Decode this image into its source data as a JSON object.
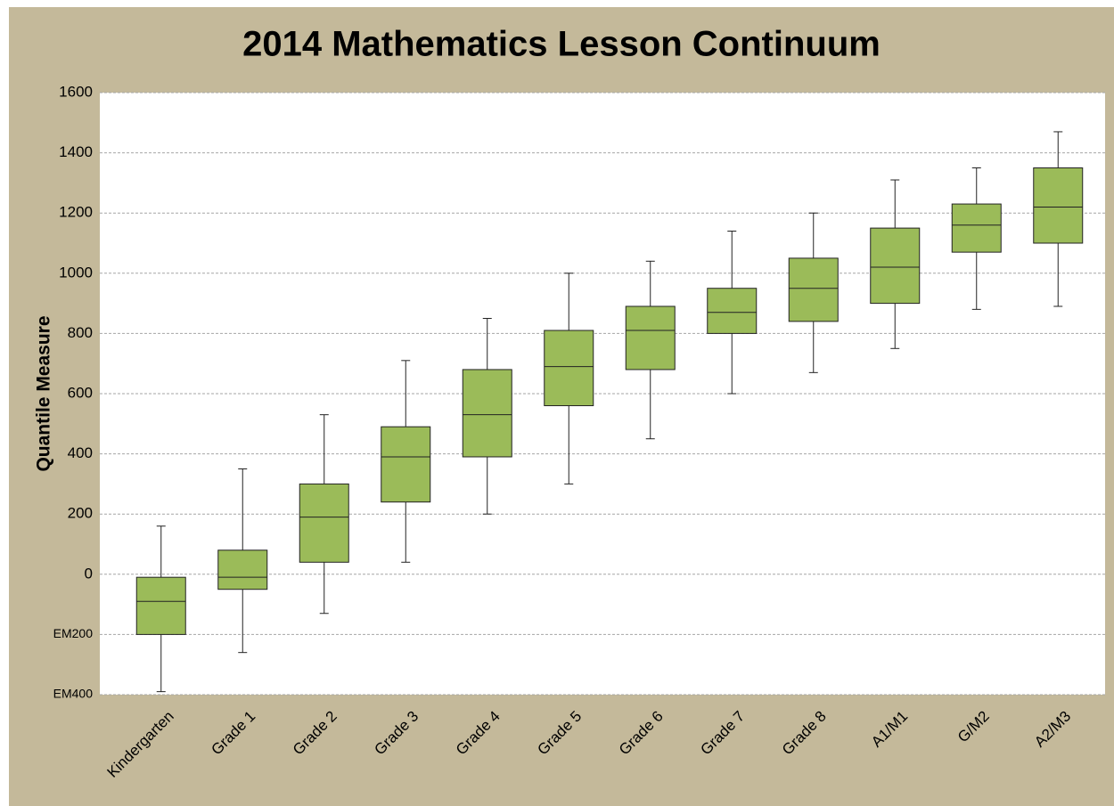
{
  "chart_data": {
    "type": "box",
    "title": "2014 Mathematics Lesson Continuum",
    "y_label": "Quantile Measure",
    "categories": [
      "Kindergarten",
      "Grade 1",
      "Grade 2",
      "Grade 3",
      "Grade 4",
      "Grade 5",
      "Grade 6",
      "Grade 7",
      "Grade 8",
      "A1/M1",
      "G/M2",
      "A2/M3"
    ],
    "min": [
      -390,
      -260,
      -130,
      40,
      200,
      300,
      450,
      600,
      670,
      750,
      880,
      890
    ],
    "q1": [
      -200,
      -50,
      40,
      240,
      390,
      560,
      680,
      800,
      840,
      900,
      1070,
      1100
    ],
    "median": [
      -90,
      -10,
      190,
      390,
      530,
      690,
      810,
      870,
      950,
      1020,
      1160,
      1220
    ],
    "q3": [
      -10,
      80,
      300,
      490,
      680,
      810,
      890,
      950,
      1050,
      1150,
      1230,
      1350
    ],
    "max": [
      160,
      350,
      530,
      710,
      850,
      1000,
      1040,
      1140,
      1200,
      1310,
      1350,
      1470
    ],
    "color": "#9bbb59",
    "ylim": [
      -400,
      1600
    ],
    "yticks": [
      {
        "value": -400,
        "label": "EM400"
      },
      {
        "value": -200,
        "label": "EM200"
      },
      0,
      200,
      400,
      600,
      800,
      1000,
      1200,
      1400,
      1600
    ],
    "grid": true
  }
}
